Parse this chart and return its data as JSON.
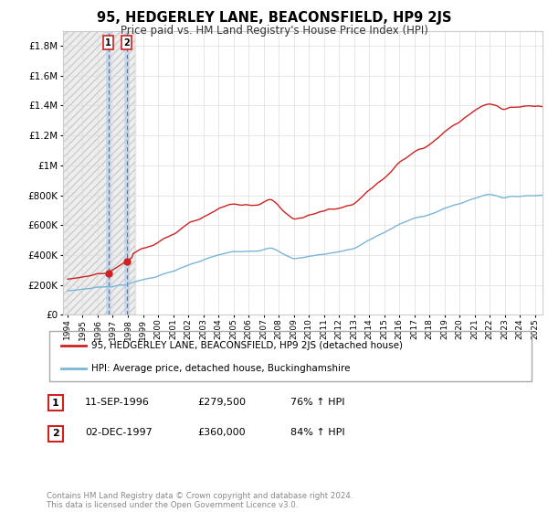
{
  "title": "95, HEDGERLEY LANE, BEACONSFIELD, HP9 2JS",
  "subtitle": "Price paid vs. HM Land Registry's House Price Index (HPI)",
  "sale1_date": 1996.7,
  "sale1_price": 279500,
  "sale1_label": "1",
  "sale2_date": 1997.92,
  "sale2_price": 360000,
  "sale2_label": "2",
  "legend_line1": "95, HEDGERLEY LANE, BEACONSFIELD, HP9 2JS (detached house)",
  "legend_line2": "HPI: Average price, detached house, Buckinghamshire",
  "footer": "Contains HM Land Registry data © Crown copyright and database right 2024.\nThis data is licensed under the Open Government Licence v3.0.",
  "hpi_color": "#7ab5d8",
  "price_color": "#cc2222",
  "dot_color": "#cc2222",
  "ylim_max": 1900000,
  "yticks": [
    0,
    200000,
    400000,
    600000,
    800000,
    1000000,
    1200000,
    1400000,
    1600000,
    1800000
  ],
  "xlim_min": 1993.7,
  "xlim_max": 2025.5,
  "xtick_years": [
    1994,
    1995,
    1996,
    1997,
    1998,
    1999,
    2000,
    2001,
    2002,
    2003,
    2004,
    2005,
    2006,
    2007,
    2008,
    2009,
    2010,
    2011,
    2012,
    2013,
    2014,
    2015,
    2016,
    2017,
    2018,
    2019,
    2020,
    2021,
    2022,
    2023,
    2024,
    2025
  ],
  "hatch_end": 1998.5,
  "table_rows": [
    {
      "num": "1",
      "date": "11-SEP-1996",
      "price": "£279,500",
      "pct": "76% ↑ HPI"
    },
    {
      "num": "2",
      "date": "02-DEC-1997",
      "price": "£360,000",
      "pct": "84% ↑ HPI"
    }
  ]
}
